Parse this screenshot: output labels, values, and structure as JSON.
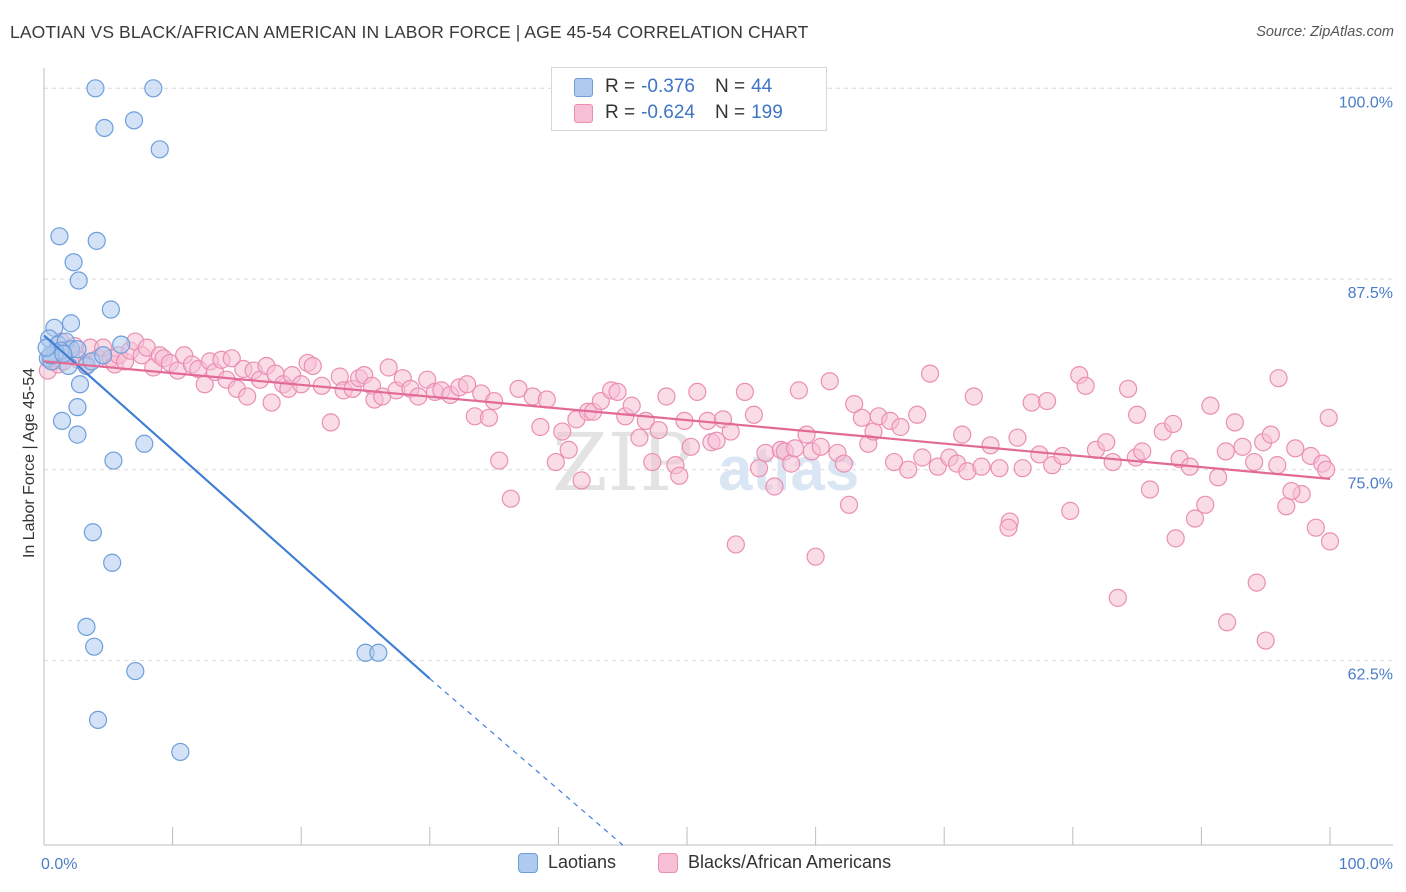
{
  "title": "LAOTIAN VS BLACK/AFRICAN AMERICAN IN LABOR FORCE | AGE 45-54 CORRELATION CHART",
  "source": "Source: ZipAtlas.com",
  "watermark": {
    "zip": "ZIP",
    "atlas": "atlas"
  },
  "legend": {
    "laotian": {
      "r_label": "R = ",
      "r_value": "-0.376",
      "n_label": "N = ",
      "n_value": "44"
    },
    "black": {
      "r_label": "R = ",
      "r_value": "-0.624",
      "n_label": "N = ",
      "n_value": "199"
    }
  },
  "colors": {
    "laotian_fill": "#aecbef",
    "laotian_stroke": "#6e9fdb",
    "laotian_line": "#3f7fd6",
    "black_fill": "#f6bfd3",
    "black_stroke": "#eb8fb2",
    "black_line": "#e26b96",
    "grid": "#d9d9d9",
    "tick_text": "#4a7cc9"
  },
  "chart_data": {
    "type": "scatter",
    "title": "LAOTIAN VS BLACK/AFRICAN AMERICAN IN LABOR FORCE | AGE 45-54 CORRELATION CHART",
    "xlabel": "",
    "ylabel": "In Labor Force | Age 45-54",
    "xlim": [
      0,
      100
    ],
    "ylim": [
      50.4,
      101.2
    ],
    "x_tick_labels": [
      {
        "value": 0,
        "label": "0.0%"
      },
      {
        "value": 100,
        "label": "100.0%"
      }
    ],
    "y_ticks": [
      {
        "value": 62.5,
        "label": "62.5%"
      },
      {
        "value": 75.0,
        "label": "75.0%"
      },
      {
        "value": 87.5,
        "label": "87.5%"
      },
      {
        "value": 100.0,
        "label": "100.0%"
      }
    ],
    "grid": true,
    "legend_position": "top-center",
    "series": [
      {
        "name": "Laotians",
        "trend": {
          "x": [
            0.0,
            30.0
          ],
          "y": [
            83.8,
            61.3
          ],
          "dashed_to": [
            45.0,
            50.4
          ]
        },
        "points": [
          [
            4,
            100
          ],
          [
            8.5,
            100
          ],
          [
            4.7,
            97.4
          ],
          [
            7,
            97.9
          ],
          [
            9,
            96
          ],
          [
            1.2,
            90.3
          ],
          [
            4.1,
            90
          ],
          [
            2.3,
            88.6
          ],
          [
            2.7,
            87.4
          ],
          [
            5.2,
            85.5
          ],
          [
            0.8,
            84.3
          ],
          [
            2.1,
            84.6
          ],
          [
            0.4,
            83.6
          ],
          [
            1.1,
            83.2
          ],
          [
            1.7,
            83.4
          ],
          [
            2.1,
            82.9
          ],
          [
            6,
            83.2
          ],
          [
            1.3,
            82.8
          ],
          [
            0.9,
            82.7
          ],
          [
            0.3,
            82.3
          ],
          [
            0.6,
            82.1
          ],
          [
            2.6,
            82.9
          ],
          [
            3.3,
            81.8
          ],
          [
            1.9,
            81.8
          ],
          [
            0.5,
            82.5
          ],
          [
            1.5,
            82.6
          ],
          [
            3.7,
            82.1
          ],
          [
            4.6,
            82.5
          ],
          [
            2.8,
            80.6
          ],
          [
            2.6,
            79.1
          ],
          [
            1.4,
            78.2
          ],
          [
            2.6,
            77.3
          ],
          [
            7.8,
            76.7
          ],
          [
            5.4,
            75.6
          ],
          [
            3.8,
            70.9
          ],
          [
            5.3,
            68.9
          ],
          [
            3.3,
            64.7
          ],
          [
            3.9,
            63.4
          ],
          [
            7.1,
            61.8
          ],
          [
            4.2,
            58.6
          ],
          [
            10.6,
            56.5
          ],
          [
            25,
            63
          ],
          [
            26,
            63
          ],
          [
            0.2,
            83
          ]
        ]
      },
      {
        "name": "Blacks/African Americans",
        "trend": {
          "x": [
            0.0,
            100.0
          ],
          "y": [
            82.1,
            74.4
          ]
        },
        "points": [
          [
            0.3,
            81.5
          ],
          [
            0.5,
            82.2
          ],
          [
            0.8,
            82.6
          ],
          [
            1.1,
            81.9
          ],
          [
            1.3,
            83.4
          ],
          [
            1.5,
            82.1
          ],
          [
            1.8,
            82.9
          ],
          [
            2.1,
            82.6
          ],
          [
            2.4,
            83.1
          ],
          [
            2.7,
            82.2
          ],
          [
            3.3,
            81.9
          ],
          [
            3.6,
            83
          ],
          [
            4.2,
            82.3
          ],
          [
            4.6,
            83
          ],
          [
            5.2,
            82.3
          ],
          [
            5.5,
            81.9
          ],
          [
            5.8,
            82.5
          ],
          [
            6.3,
            82.1
          ],
          [
            6.7,
            82.8
          ],
          [
            7.1,
            83.4
          ],
          [
            7.6,
            82.5
          ],
          [
            8,
            83
          ],
          [
            8.5,
            81.7
          ],
          [
            9,
            82.5
          ],
          [
            9.3,
            82.3
          ],
          [
            9.8,
            82
          ],
          [
            10.4,
            81.5
          ],
          [
            10.9,
            82.5
          ],
          [
            11.5,
            81.9
          ],
          [
            12,
            81.6
          ],
          [
            12.5,
            80.6
          ],
          [
            12.9,
            82.1
          ],
          [
            13.3,
            81.4
          ],
          [
            13.8,
            82.2
          ],
          [
            14.2,
            80.9
          ],
          [
            14.6,
            82.3
          ],
          [
            15,
            80.3
          ],
          [
            15.5,
            81.6
          ],
          [
            15.8,
            79.8
          ],
          [
            16.3,
            81.5
          ],
          [
            16.8,
            80.9
          ],
          [
            17.3,
            81.8
          ],
          [
            17.7,
            79.4
          ],
          [
            18,
            81.3
          ],
          [
            18.6,
            80.6
          ],
          [
            19,
            80.3
          ],
          [
            19.3,
            81.2
          ],
          [
            20,
            80.6
          ],
          [
            20.5,
            82
          ],
          [
            20.9,
            81.8
          ],
          [
            21.6,
            80.5
          ],
          [
            22.3,
            78.1
          ],
          [
            23,
            81.1
          ],
          [
            23.3,
            80.2
          ],
          [
            24,
            80.3
          ],
          [
            24.5,
            81
          ],
          [
            24.9,
            81.2
          ],
          [
            25.5,
            80.5
          ],
          [
            25.7,
            79.6
          ],
          [
            26.3,
            79.8
          ],
          [
            26.8,
            81.7
          ],
          [
            27.4,
            80.2
          ],
          [
            27.9,
            81
          ],
          [
            28.5,
            80.3
          ],
          [
            29.1,
            79.8
          ],
          [
            29.8,
            80.9
          ],
          [
            30.4,
            80.1
          ],
          [
            30.9,
            80.2
          ],
          [
            31.6,
            79.9
          ],
          [
            32.3,
            80.4
          ],
          [
            32.9,
            80.6
          ],
          [
            33.5,
            78.5
          ],
          [
            34,
            80
          ],
          [
            34.6,
            78.4
          ],
          [
            35,
            79.5
          ],
          [
            35.4,
            75.6
          ],
          [
            36.3,
            73.1
          ],
          [
            36.9,
            80.3
          ],
          [
            38,
            79.8
          ],
          [
            38.6,
            77.8
          ],
          [
            39.1,
            79.6
          ],
          [
            39.8,
            75.5
          ],
          [
            40.3,
            77.5
          ],
          [
            40.8,
            76.3
          ],
          [
            41.4,
            78.3
          ],
          [
            41.8,
            74.3
          ],
          [
            42.3,
            78.8
          ],
          [
            42.7,
            78.8
          ],
          [
            43.3,
            79.5
          ],
          [
            44.1,
            80.2
          ],
          [
            44.6,
            80.1
          ],
          [
            45.2,
            78.5
          ],
          [
            45.7,
            79.2
          ],
          [
            46.3,
            77.1
          ],
          [
            46.8,
            78.2
          ],
          [
            47.3,
            75.5
          ],
          [
            47.8,
            77.6
          ],
          [
            48.4,
            79.8
          ],
          [
            49.1,
            75.3
          ],
          [
            49.4,
            74.6
          ],
          [
            49.8,
            78.2
          ],
          [
            50.3,
            76.5
          ],
          [
            50.8,
            80.1
          ],
          [
            51.6,
            78.2
          ],
          [
            51.9,
            76.8
          ],
          [
            52.3,
            76.9
          ],
          [
            52.8,
            78.3
          ],
          [
            53.4,
            77.5
          ],
          [
            53.8,
            70.1
          ],
          [
            54.5,
            80.1
          ],
          [
            55.2,
            78.6
          ],
          [
            55.6,
            75.1
          ],
          [
            56.1,
            76.1
          ],
          [
            56.8,
            73.9
          ],
          [
            57.3,
            76.3
          ],
          [
            57.6,
            76.2
          ],
          [
            58.1,
            75.4
          ],
          [
            58.4,
            76.4
          ],
          [
            58.7,
            80.2
          ],
          [
            59.3,
            77.3
          ],
          [
            59.7,
            76.2
          ],
          [
            60.4,
            76.5
          ],
          [
            61.1,
            80.8
          ],
          [
            61.7,
            76.1
          ],
          [
            62.2,
            75.4
          ],
          [
            62.6,
            72.7
          ],
          [
            63,
            79.3
          ],
          [
            63.6,
            78.4
          ],
          [
            64.1,
            76.7
          ],
          [
            64.5,
            77.5
          ],
          [
            64.9,
            78.5
          ],
          [
            65.8,
            78.2
          ],
          [
            66.1,
            75.5
          ],
          [
            66.6,
            77.8
          ],
          [
            67.2,
            75
          ],
          [
            67.9,
            78.6
          ],
          [
            68.3,
            75.8
          ],
          [
            68.9,
            81.3
          ],
          [
            69.5,
            75.2
          ],
          [
            70.4,
            75.8
          ],
          [
            71,
            75.4
          ],
          [
            71.4,
            77.3
          ],
          [
            71.8,
            74.9
          ],
          [
            72.3,
            79.8
          ],
          [
            72.9,
            75.2
          ],
          [
            73.6,
            76.6
          ],
          [
            74.3,
            75.1
          ],
          [
            75.1,
            71.6
          ],
          [
            75.7,
            77.1
          ],
          [
            76.1,
            75.1
          ],
          [
            76.8,
            79.4
          ],
          [
            77.4,
            76
          ],
          [
            78.4,
            75.3
          ],
          [
            79.2,
            75.9
          ],
          [
            79.8,
            72.3
          ],
          [
            80.5,
            81.2
          ],
          [
            81,
            80.5
          ],
          [
            81.8,
            76.3
          ],
          [
            82.6,
            76.8
          ],
          [
            83.1,
            75.5
          ],
          [
            83.5,
            66.6
          ],
          [
            84.3,
            80.3
          ],
          [
            84.9,
            75.8
          ],
          [
            85.4,
            76.2
          ],
          [
            86,
            73.7
          ],
          [
            87,
            77.5
          ],
          [
            87.8,
            78
          ],
          [
            88.3,
            75.7
          ],
          [
            89.1,
            75.2
          ],
          [
            89.5,
            71.8
          ],
          [
            90.3,
            72.7
          ],
          [
            90.7,
            79.2
          ],
          [
            91.3,
            74.5
          ],
          [
            91.9,
            76.2
          ],
          [
            92.6,
            78.1
          ],
          [
            93.2,
            76.5
          ],
          [
            94.1,
            75.5
          ],
          [
            94.3,
            67.6
          ],
          [
            94.8,
            76.8
          ],
          [
            95.4,
            77.3
          ],
          [
            95.9,
            75.3
          ],
          [
            96.6,
            72.6
          ],
          [
            97.3,
            76.4
          ],
          [
            97.8,
            73.4
          ],
          [
            98.5,
            75.9
          ],
          [
            98.9,
            71.2
          ],
          [
            99.4,
            75.4
          ],
          [
            99.7,
            75
          ],
          [
            99.9,
            78.4
          ],
          [
            100,
            70.3
          ],
          [
            60,
            69.3
          ],
          [
            75,
            71.2
          ],
          [
            88,
            70.5
          ],
          [
            92,
            65
          ],
          [
            95,
            63.8
          ],
          [
            97,
            73.6
          ],
          [
            96,
            81
          ],
          [
            78,
            79.5
          ],
          [
            85,
            78.6
          ]
        ]
      }
    ]
  },
  "bottom_legend": [
    {
      "label": "Laotians"
    },
    {
      "label": "Blacks/African Americans"
    }
  ]
}
